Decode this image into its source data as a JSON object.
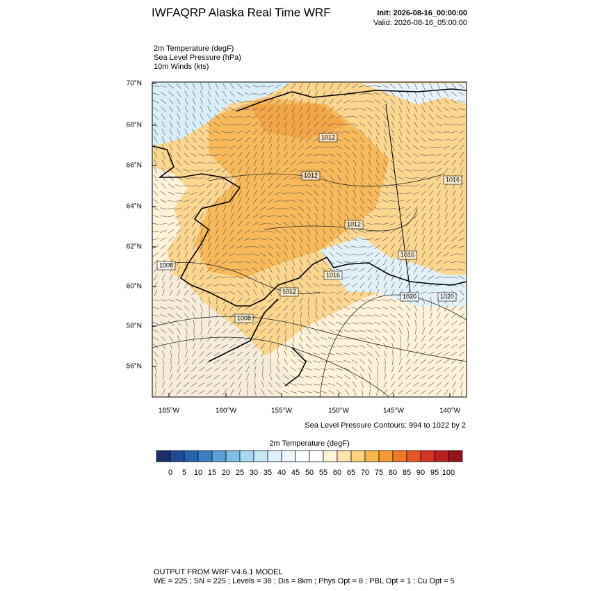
{
  "header": {
    "title": "IWFAQRP Alaska Real Time WRF",
    "init": "Init: 2026-08-16_00:00:00",
    "valid": "Valid: 2026-08-16_05:00:00"
  },
  "fields": [
    "2m Temperature   (degF)",
    "Sea Level Pressure   (hPa)",
    "10m Winds   (kts)"
  ],
  "map": {
    "lat_labels": [
      "70°N",
      "68°N",
      "66°N",
      "64°N",
      "62°N",
      "60°N",
      "58°N",
      "56°N"
    ],
    "lon_labels": [
      "165°W",
      "160°W",
      "155°W",
      "150°W",
      "145°W",
      "140°W"
    ],
    "contour_labels": [
      "1012",
      "1012",
      "1016",
      "1012",
      "1008",
      "1016",
      "1012",
      "1016",
      "1020",
      "1020",
      "1008"
    ]
  },
  "contour_note": "Sea Level Pressure Contours: 994 to 1022 by 2",
  "colorbar": {
    "title": "2m Temperature  (degF)",
    "ticks": [
      0,
      5,
      10,
      15,
      20,
      25,
      30,
      35,
      40,
      45,
      50,
      55,
      60,
      65,
      70,
      75,
      80,
      85,
      90,
      95,
      100
    ],
    "colors": [
      "#1b2f6b",
      "#1f4a96",
      "#2762b0",
      "#3a7dc4",
      "#5b9fd6",
      "#7fbfe6",
      "#a6d8f2",
      "#c6e6f6",
      "#ddf0f9",
      "#eef7fb",
      "#fbfdfe",
      "#ffffff",
      "#fff3da",
      "#fde4ae",
      "#fbd17f",
      "#f8b54a",
      "#f39a30",
      "#ec7a28",
      "#e35627",
      "#d33426",
      "#b81e22",
      "#8f1518"
    ]
  },
  "footer": {
    "model": "OUTPUT FROM WRF V4.6.1 MODEL",
    "settings": "WE = 225 ; SN = 225 ; Levels = 38 ; Dis = 8km ; Phys Opt = 8 ; PBL Opt = 1 ; Cu Opt = 5"
  }
}
